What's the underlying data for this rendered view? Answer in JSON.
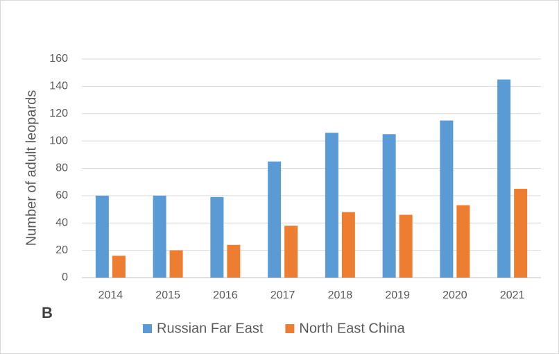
{
  "chart_data": {
    "type": "bar",
    "y_label": "Number of adult leopards",
    "panel_label": "B",
    "categories": [
      "2014",
      "2015",
      "2016",
      "2017",
      "2018",
      "2019",
      "2020",
      "2021"
    ],
    "series": [
      {
        "name": "Russian Far East",
        "color": "#5b9bd5",
        "values": [
          60,
          60,
          59,
          85,
          106,
          105,
          115,
          145
        ]
      },
      {
        "name": "North East China",
        "color": "#ed7d31",
        "values": [
          16,
          20,
          24,
          38,
          48,
          46,
          53,
          65
        ]
      }
    ],
    "ylim": [
      0,
      160
    ],
    "yticks": [
      0,
      20,
      40,
      60,
      80,
      100,
      120,
      140,
      160
    ],
    "grid": true,
    "legend": "bottom"
  }
}
